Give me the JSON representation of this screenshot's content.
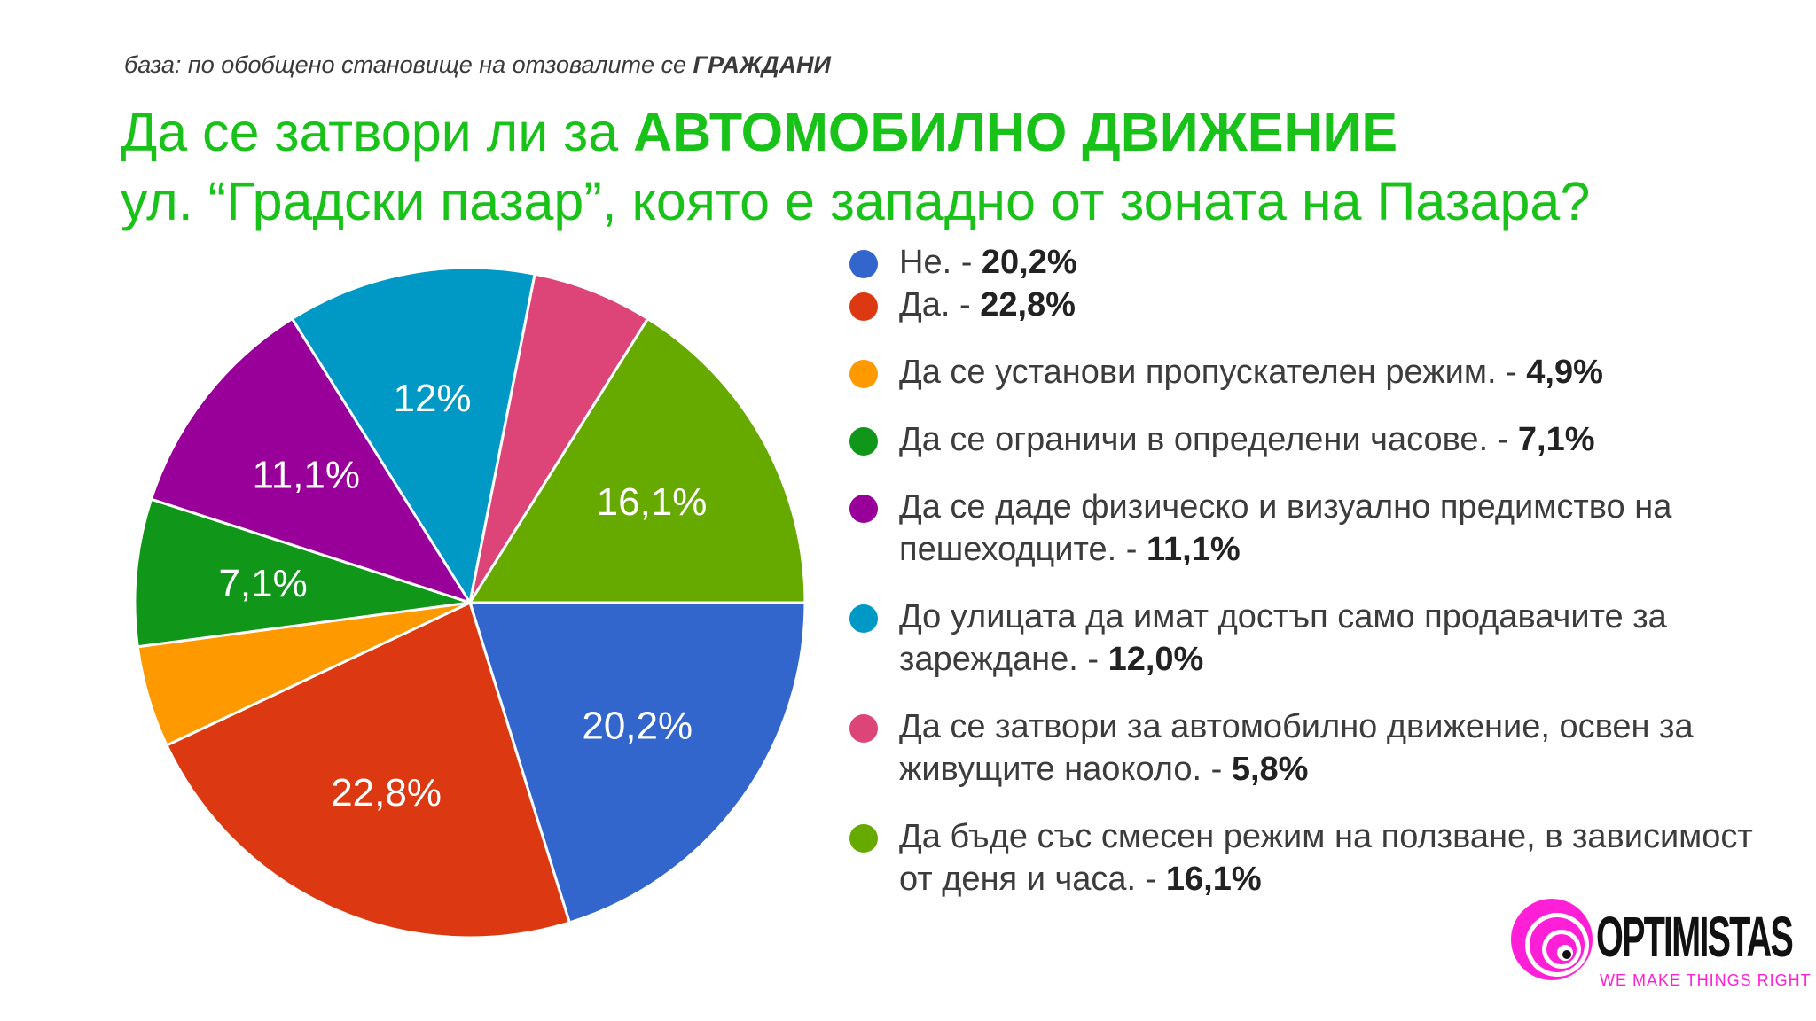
{
  "header": {
    "base_prefix": "база: по обобщено становище на отзовалите се ",
    "base_bold": "ГРАЖДАНИ",
    "title_line1_prefix": "Да се затвори ли за ",
    "title_line1_bold": "АВТОМОБИЛНО ДВИЖЕНИЕ",
    "title_line2": "ул. “Градски пазар”, която е западно от зоната на Пазара?"
  },
  "chart_data": {
    "type": "pie",
    "title": "",
    "slices": [
      {
        "name": "Не.",
        "value": 20.2,
        "color": "#3366cc",
        "slice_label": "20,2%"
      },
      {
        "name": "Да.",
        "value": 22.8,
        "color": "#dc3912",
        "slice_label": "22,8%"
      },
      {
        "name": "Да се установи пропускателен режим.",
        "value": 4.9,
        "color": "#ff9900",
        "slice_label": ""
      },
      {
        "name": "Да се ограничи в определени часове.",
        "value": 7.1,
        "color": "#109618",
        "slice_label": "7,1%"
      },
      {
        "name": "Да се даде физическо и визуално предимство на пешеходците.",
        "value": 11.1,
        "color": "#990099",
        "slice_label": "11,1%"
      },
      {
        "name": "До улицата да имат достъп само продавачите за зареждане.",
        "value": 12.0,
        "color": "#0099c6",
        "slice_label": "12%"
      },
      {
        "name": "Да се затвори за автомобилно движение, освен за живущите наоколо.",
        "value": 5.8,
        "color": "#dd4477",
        "slice_label": ""
      },
      {
        "name": "Да бъде със смесен режим на ползване, в зависимост от деня и часа.",
        "value": 16.1,
        "color": "#66aa00",
        "slice_label": "16,1%"
      }
    ]
  },
  "legend": [
    {
      "text": "Не. - ",
      "value": "20,2%"
    },
    {
      "text": "Да. - ",
      "value": "22,8%"
    },
    {
      "text": "Да се установи пропускателен режим. - ",
      "value": "4,9%"
    },
    {
      "text": "Да се ограничи в определени часове. - ",
      "value": "7,1%"
    },
    {
      "text": "Да се даде физическо и визуално предимство на пешеходците. - ",
      "value": "11,1%"
    },
    {
      "text": "До улицата да имат достъп само продавачите за зареждане. - ",
      "value": "12,0%"
    },
    {
      "text": "Да се затвори за автомобилно движение, освен за живущите наоколо. - ",
      "value": "5,8%"
    },
    {
      "text": "Да бъде със смесен режим на ползване, в зависимост от деня и часа. - ",
      "value": "16,1%"
    }
  ],
  "logo": {
    "name": "OPTIMISTAS",
    "tagline": "WE MAKE THINGS RIGHT"
  }
}
